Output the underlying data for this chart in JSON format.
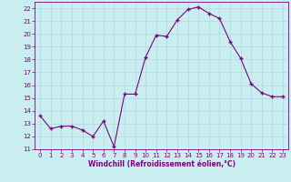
{
  "x": [
    0,
    1,
    2,
    3,
    4,
    5,
    6,
    7,
    8,
    9,
    10,
    11,
    12,
    13,
    14,
    15,
    16,
    17,
    18,
    19,
    20,
    21,
    22,
    23
  ],
  "y": [
    13.6,
    12.6,
    12.8,
    12.8,
    12.5,
    12.0,
    13.2,
    11.2,
    15.3,
    15.3,
    18.2,
    19.9,
    19.8,
    21.1,
    21.9,
    22.1,
    21.6,
    21.2,
    19.4,
    18.1,
    16.1,
    15.4,
    15.1,
    15.1
  ],
  "line_color": "#800080",
  "marker": "+",
  "background_color": "#c8eef0",
  "grid_color": "#b0d8dc",
  "xlabel": "Windchill (Refroidissement éolien,°C)",
  "xlim": [
    -0.5,
    23.5
  ],
  "ylim": [
    11,
    22.5
  ],
  "yticks": [
    11,
    12,
    13,
    14,
    15,
    16,
    17,
    18,
    19,
    20,
    21,
    22
  ],
  "xticks": [
    0,
    1,
    2,
    3,
    4,
    5,
    6,
    7,
    8,
    9,
    10,
    11,
    12,
    13,
    14,
    15,
    16,
    17,
    18,
    19,
    20,
    21,
    22,
    23
  ],
  "tick_color": "#800080",
  "label_color": "#800080",
  "spine_color": "#800080",
  "tick_fontsize": 5.0,
  "xlabel_fontsize": 5.5
}
